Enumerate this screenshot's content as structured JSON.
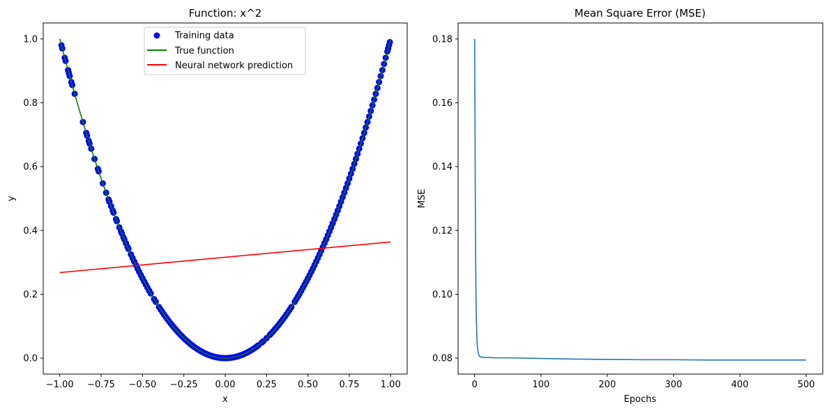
{
  "chart_data": [
    {
      "type": "line",
      "title": "Function: x^2",
      "xlabel": "x",
      "ylabel": "y",
      "xlim": [
        -1.1,
        1.1
      ],
      "ylim": [
        -0.05,
        1.05
      ],
      "xticks": [
        -1.0,
        -0.75,
        -0.5,
        -0.25,
        0.0,
        0.25,
        0.5,
        0.75,
        1.0
      ],
      "xtick_labels": [
        "−1.00",
        "−0.75",
        "−0.50",
        "−0.25",
        "0.00",
        "0.25",
        "0.50",
        "0.75",
        "1.00"
      ],
      "yticks": [
        0.0,
        0.2,
        0.4,
        0.6,
        0.8,
        1.0
      ],
      "ytick_labels": [
        "0.0",
        "0.2",
        "0.4",
        "0.6",
        "0.8",
        "1.0"
      ],
      "legend_position": "top-center",
      "series": [
        {
          "name": "Training data",
          "kind": "scatter",
          "color": "#0000ff",
          "function": "x^2",
          "x": [
            -0.99,
            -0.985,
            -0.97,
            -0.965,
            -0.95,
            -0.945,
            -0.94,
            -0.93,
            -0.925,
            -0.91,
            -0.86,
            -0.84,
            -0.835,
            -0.825,
            -0.82,
            -0.81,
            -0.79,
            -0.77,
            -0.765,
            -0.74,
            -0.72,
            -0.705,
            -0.7,
            -0.69,
            -0.68,
            -0.675,
            -0.66,
            -0.655,
            -0.64,
            -0.63,
            -0.625,
            -0.615,
            -0.61,
            -0.6,
            -0.59,
            -0.585,
            -0.57,
            -0.56,
            -0.55,
            -0.54,
            -0.53,
            -0.52,
            -0.51,
            -0.5,
            -0.49,
            -0.48,
            -0.47,
            -0.46,
            -0.45,
            -0.43,
            -0.42,
            -0.4,
            -0.39,
            -0.38,
            -0.37,
            -0.36,
            -0.35,
            -0.34,
            -0.33,
            -0.32,
            -0.31,
            -0.3,
            -0.29,
            -0.28,
            -0.27,
            -0.26,
            -0.25,
            -0.24,
            -0.23,
            -0.22,
            -0.21,
            -0.2,
            -0.19,
            -0.18,
            -0.17,
            -0.16,
            -0.15,
            -0.14,
            -0.13,
            -0.12,
            -0.11,
            -0.1,
            -0.09,
            -0.08,
            -0.07,
            -0.06,
            -0.05,
            -0.04,
            -0.03,
            -0.02,
            -0.01,
            0.0,
            0.01,
            0.02,
            0.03,
            0.04,
            0.05,
            0.06,
            0.07,
            0.08,
            0.09,
            0.1,
            0.11,
            0.12,
            0.13,
            0.14,
            0.15,
            0.16,
            0.17,
            0.18,
            0.19,
            0.2,
            0.22,
            0.23,
            0.25,
            0.27,
            0.28,
            0.29,
            0.3,
            0.31,
            0.32,
            0.33,
            0.34,
            0.35,
            0.36,
            0.37,
            0.38,
            0.39,
            0.4,
            0.42,
            0.43,
            0.44,
            0.45,
            0.46,
            0.47,
            0.48,
            0.49,
            0.5,
            0.51,
            0.52,
            0.53,
            0.54,
            0.55,
            0.56,
            0.57,
            0.58,
            0.59,
            0.6,
            0.61,
            0.62,
            0.63,
            0.64,
            0.65,
            0.66,
            0.67,
            0.68,
            0.69,
            0.7,
            0.71,
            0.72,
            0.73,
            0.74,
            0.75,
            0.76,
            0.77,
            0.78,
            0.79,
            0.8,
            0.81,
            0.82,
            0.83,
            0.84,
            0.85,
            0.86,
            0.87,
            0.88,
            0.89,
            0.9,
            0.91,
            0.92,
            0.93,
            0.94,
            0.95,
            0.96,
            0.97,
            0.98,
            0.985,
            0.99,
            0.995
          ]
        },
        {
          "name": "True function",
          "kind": "line",
          "color": "#008000",
          "function": "x^2",
          "x_range": [
            -1.0,
            1.0
          ]
        },
        {
          "name": "Neural network prediction",
          "kind": "line",
          "color": "#ff0000",
          "x": [
            -1.0,
            1.0
          ],
          "y": [
            0.268,
            0.364
          ]
        }
      ]
    },
    {
      "type": "line",
      "title": "Mean Square Error (MSE)",
      "xlabel": "Epochs",
      "ylabel": "MSE",
      "xlim": [
        -25,
        525
      ],
      "ylim": [
        0.075,
        0.185
      ],
      "xticks": [
        0,
        100,
        200,
        300,
        400,
        500
      ],
      "xtick_labels": [
        "0",
        "100",
        "200",
        "300",
        "400",
        "500"
      ],
      "yticks": [
        0.08,
        0.1,
        0.12,
        0.14,
        0.16,
        0.18
      ],
      "ytick_labels": [
        "0.08",
        "0.10",
        "0.12",
        "0.14",
        "0.16",
        "0.18"
      ],
      "series": [
        {
          "color": "#1f77b4",
          "x": [
            0,
            0.5,
            1,
            1.5,
            2,
            2.5,
            3,
            3.5,
            4,
            5,
            6,
            7,
            8,
            9,
            10,
            12,
            15,
            20,
            30,
            50,
            100,
            150,
            200,
            250,
            300,
            350,
            400,
            450,
            500
          ],
          "y": [
            0.18,
            0.155,
            0.13,
            0.112,
            0.1,
            0.093,
            0.089,
            0.086,
            0.084,
            0.0822,
            0.0812,
            0.0807,
            0.0805,
            0.0804,
            0.0803,
            0.0803,
            0.0802,
            0.0802,
            0.0801,
            0.0801,
            0.0799,
            0.0797,
            0.0796,
            0.0795,
            0.0795,
            0.0794,
            0.0794,
            0.0794,
            0.0794
          ]
        }
      ]
    }
  ]
}
